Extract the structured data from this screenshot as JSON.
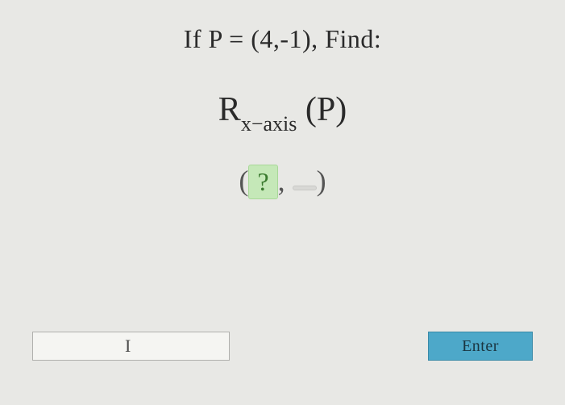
{
  "problem": {
    "line1": "If P = (4,-1), Find:",
    "expression": {
      "main": "R",
      "subscript": "x−axis",
      "arg": " (P)"
    },
    "answer_template": {
      "open": "(",
      "box1": "?",
      "sep": ", ",
      "box2": " ",
      "close": ")"
    }
  },
  "input": {
    "value": "",
    "placeholder": ""
  },
  "buttons": {
    "enter": "Enter"
  },
  "colors": {
    "background": "#e8e8e5",
    "text_primary": "#2a2a2a",
    "text_muted": "#555",
    "box_active_bg": "#c5e8b8",
    "box_active_fg": "#3a7a2e",
    "box_inactive_bg": "#d8d8d5",
    "enter_bg": "#4da8c9",
    "input_border": "#b0b0ad"
  },
  "typography": {
    "line1_fontsize": 32,
    "line2_fontsize": 42,
    "subscript_fontsize": 26,
    "line3_fontsize": 36,
    "button_fontsize": 20
  }
}
